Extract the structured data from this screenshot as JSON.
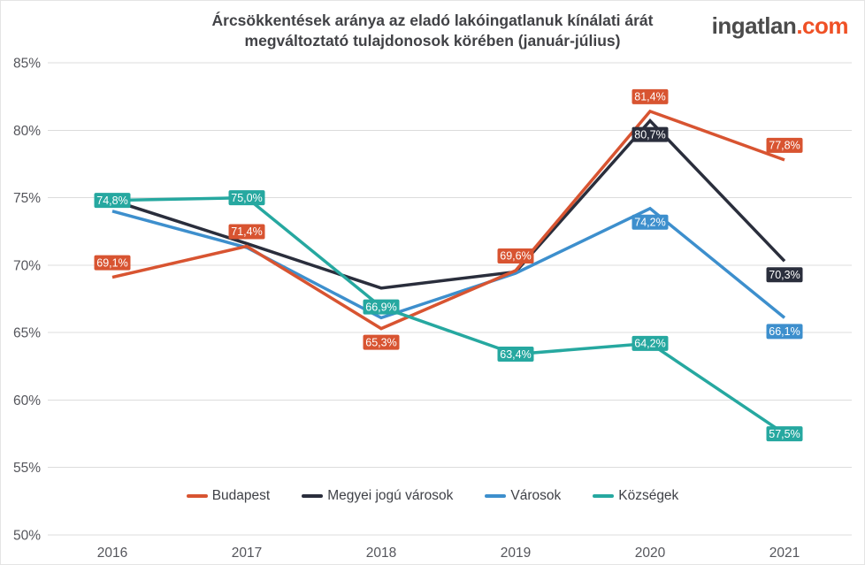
{
  "title": {
    "line1": "Árcsökkentések aránya az eladó lakóingatlanuk kínálati árát",
    "line2": "megváltoztató tulajdonosok körében (január-július)"
  },
  "logo": {
    "name": "ingatlan",
    "tld": ".com",
    "name_color": "#4b4b4b",
    "tld_color": "#ef5126"
  },
  "colors": {
    "gridline": "#dcdcdc",
    "tick_text": "#54555b",
    "point_label_text": "#ffffff"
  },
  "chart_data": {
    "type": "line",
    "title": "Árcsökkentések aránya az eladó lakóingatlanuk kínálati árát megváltoztató tulajdonosok körében (január-július)",
    "x": [
      "2016",
      "2017",
      "2018",
      "2019",
      "2020",
      "2021"
    ],
    "ylim": [
      50,
      85
    ],
    "y_ticks": [
      85,
      80,
      75,
      70,
      65,
      60,
      55,
      50
    ],
    "y_tick_labels": [
      "85%",
      "80%",
      "75%",
      "70%",
      "65%",
      "60%",
      "55%",
      "50%"
    ],
    "grid": true,
    "legend_position": "bottom",
    "decimal_separator": ",",
    "series": [
      {
        "name": "Megyei jogú városok",
        "color": "#2a2e3c",
        "values": [
          74.8,
          71.6,
          68.3,
          69.5,
          80.7,
          70.3
        ],
        "point_labels": [
          null,
          null,
          null,
          null,
          "80,7%",
          "70,3%"
        ],
        "label_positions": [
          null,
          null,
          null,
          null,
          "below",
          "below"
        ]
      },
      {
        "name": "Városok",
        "color": "#3d8fcd",
        "values": [
          74.0,
          71.3,
          66.1,
          69.4,
          74.2,
          66.1
        ],
        "point_labels": [
          null,
          null,
          null,
          null,
          "74,2%",
          "66,1%"
        ],
        "label_positions": [
          null,
          null,
          null,
          null,
          "below",
          "below"
        ]
      },
      {
        "name": "Budapest",
        "color": "#d85431",
        "values": [
          69.1,
          71.4,
          65.3,
          69.6,
          81.4,
          77.8
        ],
        "point_labels": [
          "69,1%",
          "71,4%",
          "65,3%",
          "69,6%",
          "81,4%",
          "77,8%"
        ],
        "label_positions": [
          "above",
          "above",
          "below",
          "above",
          "above",
          "above"
        ]
      },
      {
        "name": "Községek",
        "color": "#26a8a0",
        "values": [
          74.8,
          75.0,
          66.9,
          63.4,
          64.2,
          57.5
        ],
        "point_labels": [
          "74,8%",
          "75,0%",
          "66,9%",
          "63,4%",
          "64,2%",
          "57,5%"
        ],
        "label_positions": [
          "on",
          "on",
          "on",
          "on",
          "on",
          "on"
        ]
      }
    ],
    "legend_order": [
      "Budapest",
      "Megyei jogú városok",
      "Városok",
      "Községek"
    ]
  }
}
